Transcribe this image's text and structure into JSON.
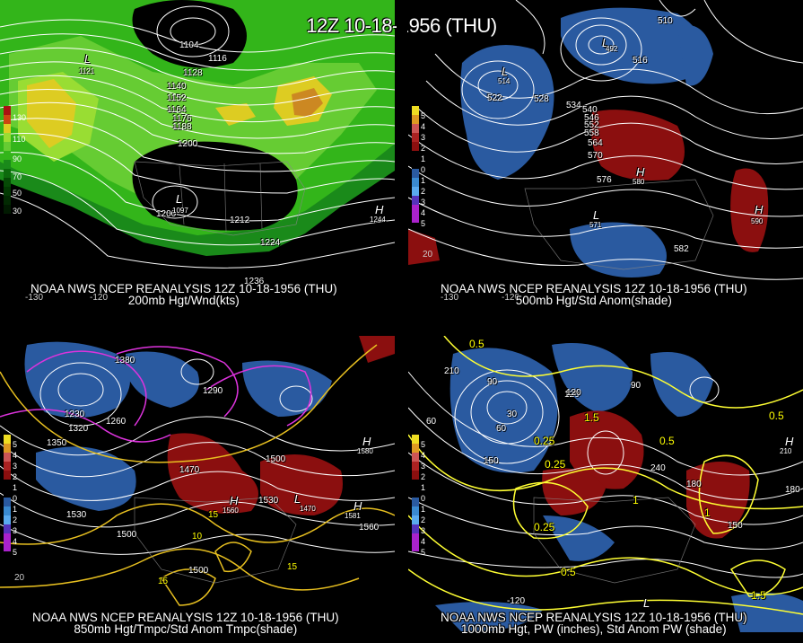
{
  "main_title": "12Z 10-18-1956 (THU)",
  "panels": [
    {
      "caption1": "NOAA NWS NCEP REANALYSIS 12Z 10-18-1956 (THU)",
      "caption2": "200mb Hgt/Wnd(kts)",
      "colorbar_labels": [
        "130",
        "110",
        "90",
        "70",
        "50",
        "30"
      ],
      "contours": [
        "1104",
        "1116",
        "1128",
        "1140",
        "1152",
        "1164",
        "1176",
        "1188",
        "1200",
        "1200",
        "1212",
        "1224",
        "1236"
      ],
      "centers": [
        {
          "letter": "L",
          "value": "1121"
        },
        {
          "letter": "L",
          "value": "1097"
        },
        {
          "letter": "H",
          "value": "1244"
        }
      ],
      "lon_ticks": [
        "-130",
        "-120"
      ]
    },
    {
      "caption1": "NOAA NWS NCEP REANALYSIS 12Z 10-18-1956 (THU)",
      "caption2": "500mb Hgt/Std Anom(shade)",
      "colorbar_labels": [
        "5",
        "4",
        "3",
        "2",
        "1",
        "0",
        "1",
        "2",
        "3",
        "4",
        "5"
      ],
      "contours": [
        "510",
        "516",
        "522",
        "528",
        "534",
        "540",
        "546",
        "552",
        "558",
        "564",
        "570",
        "576",
        "582"
      ],
      "centers": [
        {
          "letter": "L",
          "value": "514"
        },
        {
          "letter": "L",
          "value": "492"
        },
        {
          "letter": "H",
          "value": "580"
        },
        {
          "letter": "L",
          "value": "571"
        },
        {
          "letter": "H",
          "value": "590"
        }
      ],
      "lon_ticks": [
        "-130",
        "-120"
      ],
      "lat_ticks": [
        "20"
      ]
    },
    {
      "caption1": "NOAA NWS NCEP REANALYSIS 12Z 10-18-1956 (THU)",
      "caption2": "850mb Hgt/Tmpc/Std Anom Tmpc(shade)",
      "colorbar_labels": [
        "5",
        "4",
        "3",
        "2",
        "1",
        "0",
        "1",
        "2",
        "3",
        "4",
        "5"
      ],
      "contours": [
        "1380",
        "1350",
        "1320",
        "1290",
        "1260",
        "1230",
        "1470",
        "1500",
        "1530",
        "1560",
        "1500",
        "1500",
        "1530"
      ],
      "temp_labels": [
        "15",
        "10",
        "15",
        "15"
      ],
      "centers": [
        {
          "letter": "H",
          "value": "1560"
        },
        {
          "letter": "L",
          "value": "1470"
        },
        {
          "letter": "H",
          "value": "1581"
        },
        {
          "letter": "H",
          "value": "1580"
        }
      ],
      "lat_ticks": [
        "20"
      ]
    },
    {
      "caption1": "NOAA NWS NCEP REANALYSIS 12Z 10-18-1956 (THU)",
      "caption2": "1000mb Hgt, PW (inches), Std Anom PW (shade)",
      "colorbar_labels": [
        "5",
        "4",
        "3",
        "2",
        "1",
        "0",
        "1",
        "2",
        "3",
        "4",
        "5"
      ],
      "contours": [
        "30",
        "60",
        "90",
        "120",
        "150",
        "180",
        "210",
        "240",
        "60",
        "90",
        "120",
        "150",
        "180"
      ],
      "pw_labels": [
        "0.5",
        "0.25",
        "0.5",
        "0.25",
        "1",
        "0.5",
        "1.5",
        "0.25",
        "0.5",
        "1",
        "1.5"
      ],
      "centers": [
        {
          "letter": "H",
          "value": "210"
        },
        {
          "letter": "L",
          "value": "-120"
        }
      ],
      "lon_ticks": [
        "-120"
      ]
    }
  ],
  "colors": {
    "panel1_bands": [
      "#1a8a1a",
      "#33b51a",
      "#66cc33",
      "#99dd33",
      "#ddcc22",
      "#cc7711",
      "#993311"
    ],
    "anom_positive": "#8b0f0f",
    "anom_negative": "#2a5aa0",
    "contour": "#ffffff",
    "temp_contour": "#e8c020",
    "pw_contour": "#ffff33",
    "magenta_contour": "#dd33dd"
  }
}
